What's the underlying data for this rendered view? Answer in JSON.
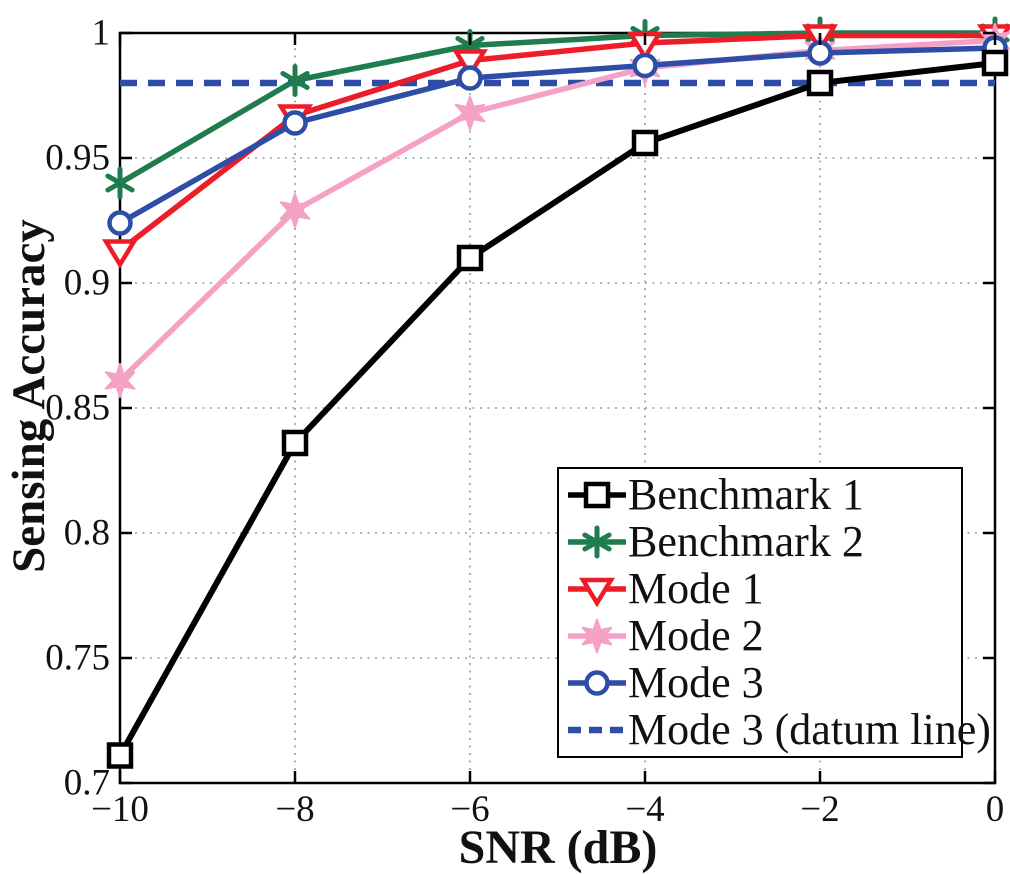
{
  "chart_data": {
    "type": "line",
    "title": "",
    "xlabel": "SNR (dB)",
    "ylabel": "Sensing Accuracy",
    "xlim": [
      -10,
      0
    ],
    "ylim": [
      0.7,
      1.0
    ],
    "grid": true,
    "legend_position": "lower right",
    "x": [
      -10,
      -8,
      -6,
      -4,
      -2,
      0
    ],
    "xtick_labels": [
      "−10",
      "−8",
      "−6",
      "−4",
      "−2",
      "0"
    ],
    "yticks": [
      0.7,
      0.75,
      0.8,
      0.85,
      0.9,
      0.95,
      1.0
    ],
    "ytick_labels": [
      "0.7",
      "0.75",
      "0.8",
      "0.85",
      "0.9",
      "0.95",
      "1"
    ],
    "series": [
      {
        "name": "Benchmark 1",
        "color": "#000000",
        "marker": "square",
        "line": "solid",
        "values": [
          0.711,
          0.836,
          0.91,
          0.956,
          0.98,
          0.988
        ]
      },
      {
        "name": "Benchmark 2",
        "color": "#1e7c4d",
        "marker": "asterisk",
        "line": "solid",
        "values": [
          0.94,
          0.981,
          0.995,
          0.999,
          1.0,
          1.0
        ]
      },
      {
        "name": "Mode 1",
        "color": "#ed1c29",
        "marker": "triangle-down",
        "line": "solid",
        "values": [
          0.913,
          0.967,
          0.989,
          0.996,
          0.999,
          0.999
        ]
      },
      {
        "name": "Mode 2",
        "color": "#f5a1c6",
        "marker": "hexagram",
        "line": "solid",
        "values": [
          0.861,
          0.929,
          0.968,
          0.986,
          0.993,
          0.997
        ]
      },
      {
        "name": "Mode 3",
        "color": "#2d4da6",
        "marker": "circle",
        "line": "solid",
        "values": [
          0.924,
          0.964,
          0.982,
          0.987,
          0.992,
          0.994
        ]
      },
      {
        "name": "Mode 3 (datum line)",
        "color": "#2d4da6",
        "marker": "none",
        "line": "dashed",
        "values": [
          0.98,
          0.98,
          0.98,
          0.98,
          0.98,
          0.98
        ]
      }
    ],
    "datum_value": 0.98,
    "grid_color": "#9b9b9b",
    "axis_color": "#000000"
  }
}
